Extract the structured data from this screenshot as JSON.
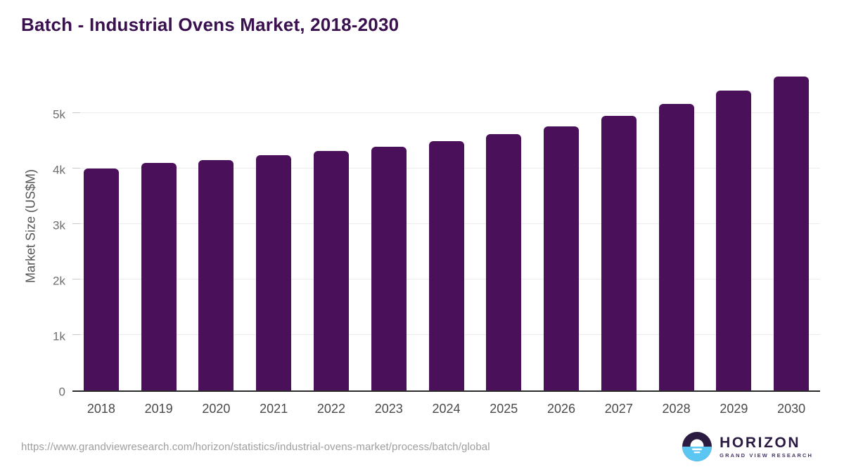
{
  "chart_data": {
    "type": "bar",
    "title": "Batch - Industrial Ovens Market, 2018-2030",
    "categories": [
      "2018",
      "2019",
      "2020",
      "2021",
      "2022",
      "2023",
      "2024",
      "2025",
      "2026",
      "2027",
      "2028",
      "2029",
      "2030"
    ],
    "values": [
      4000,
      4100,
      4150,
      4240,
      4320,
      4390,
      4490,
      4620,
      4760,
      4950,
      5160,
      5400,
      5660
    ],
    "xlabel": "",
    "ylabel": "Market Size (US$M)",
    "ylim": [
      0,
      5800
    ],
    "yticks": [
      {
        "label": "0",
        "value": 0
      },
      {
        "label": "1k",
        "value": 1000
      },
      {
        "label": "2k",
        "value": 2000
      },
      {
        "label": "3k",
        "value": 3000
      },
      {
        "label": "4k",
        "value": 4000
      },
      {
        "label": "5k",
        "value": 5000
      }
    ],
    "grid": true,
    "legend_position": "none"
  },
  "colors": {
    "bar": "#4a105a",
    "title": "#3a104f",
    "gridline": "#ececec",
    "baseline": "#2b2b2b",
    "logo_purple": "#2b1b43",
    "logo_blue": "#5bc6f2"
  },
  "footer": {
    "source_url": "https://www.grandviewresearch.com/horizon/statistics/industrial-ovens-market/process/batch/global",
    "logo": {
      "title": "HORIZON",
      "subtitle": "GRAND VIEW RESEARCH"
    }
  }
}
